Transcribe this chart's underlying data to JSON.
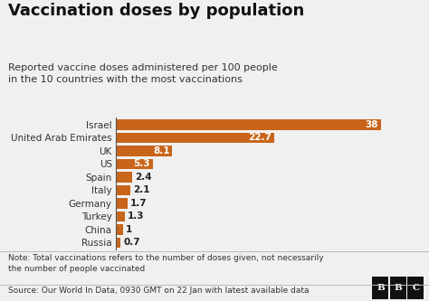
{
  "title": "Vaccination doses by population",
  "subtitle": "Reported vaccine doses administered per 100 people\nin the 10 countries with the most vaccinations",
  "countries": [
    "Israel",
    "United Arab Emirates",
    "UK",
    "US",
    "Spain",
    "Italy",
    "Germany",
    "Turkey",
    "China",
    "Russia"
  ],
  "values": [
    38,
    22.7,
    8.1,
    5.3,
    2.4,
    2.1,
    1.7,
    1.3,
    1,
    0.7
  ],
  "bar_color": "#C8651A",
  "bg_color": "#f0f0f0",
  "note": "Note: Total vaccinations refers to the number of doses given, not necessarily\nthe number of people vaccinated",
  "source": "Source: Our World In Data, 0930 GMT on 22 Jan with latest available data",
  "label_white": [
    true,
    true,
    true,
    true,
    false,
    false,
    false,
    false,
    false,
    false
  ],
  "title_fontsize": 13,
  "subtitle_fontsize": 8,
  "note_fontsize": 6.5,
  "source_fontsize": 6.5,
  "bar_label_fontsize": 7.5
}
